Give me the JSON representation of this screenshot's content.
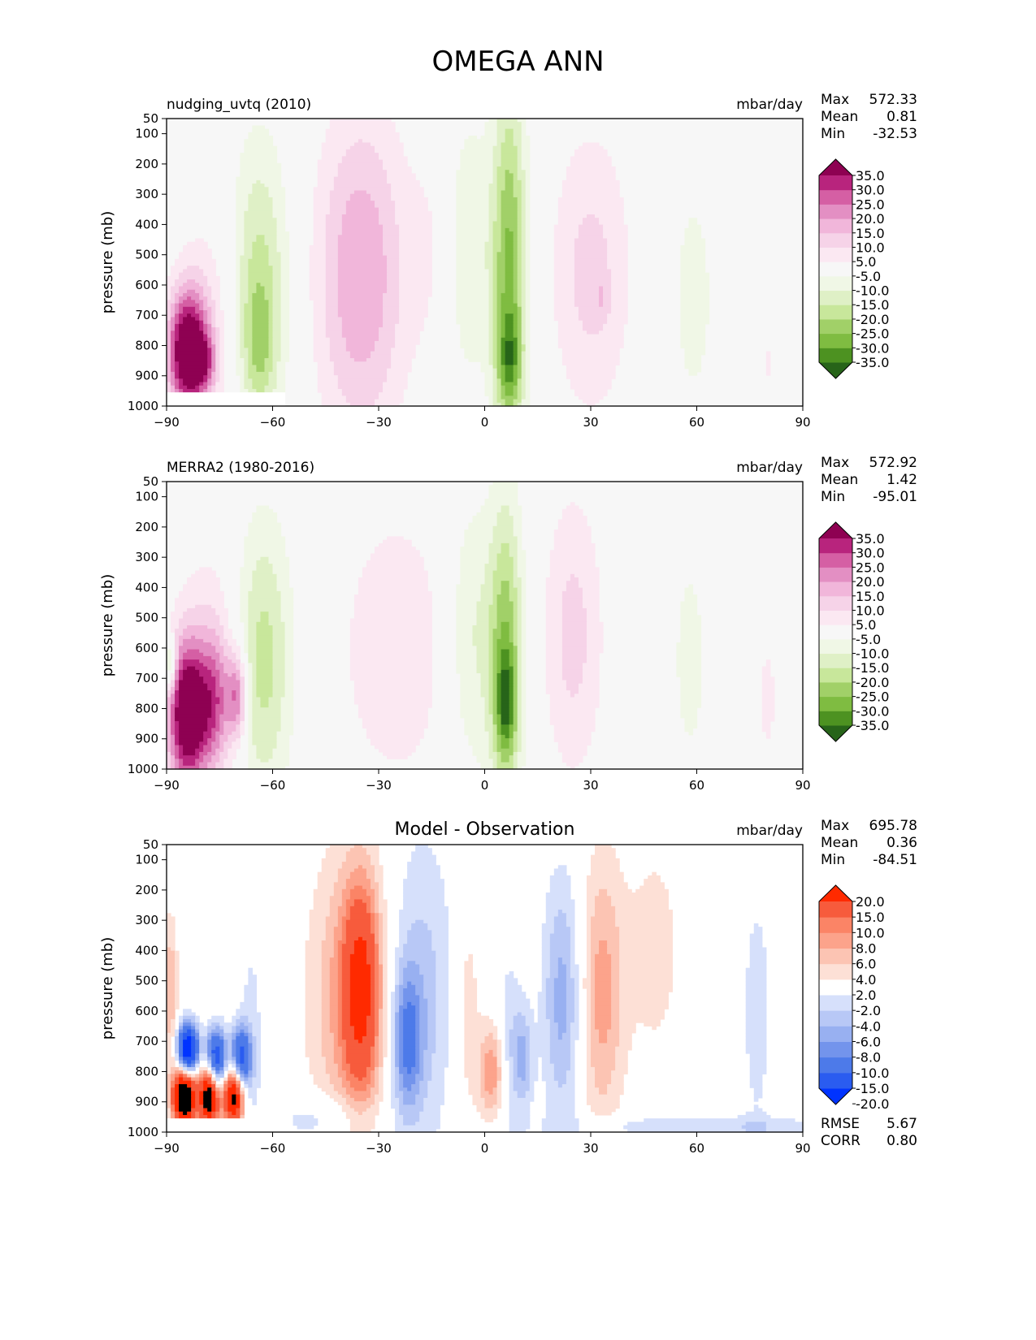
{
  "main_title": "OMEGA ANN",
  "colors": {
    "seq_levels": [
      "#276419",
      "#4d9221",
      "#7fbc41",
      "#a1d068",
      "#c8e79b",
      "#dff0c6",
      "#f0f7e6",
      "#f7f7f7",
      "#fbe8f2",
      "#f6d3e8",
      "#f1b6da",
      "#e38fc3",
      "#d55fa4",
      "#b8247d",
      "#8e0152"
    ],
    "diff_levels": [
      "#0033ff",
      "#2a5cf0",
      "#4d7ae9",
      "#7394ec",
      "#98b0f1",
      "#b8c8f6",
      "#d6e0fb",
      "#ffffff",
      "#fde0d6",
      "#fcc4b3",
      "#fca38b",
      "#fb8466",
      "#f75b3c",
      "#ff2a00"
    ],
    "background_seq": "#f7f7f7",
    "background_diff": "#ffffff"
  },
  "chart_data": [
    {
      "type": "heatmap",
      "id": "model",
      "title": "nudging_uvtq (2010)",
      "units": "mbar/day",
      "ylabel": "pressure (mb)",
      "xlim": [
        -90,
        90
      ],
      "ylim": [
        1000,
        50
      ],
      "xticks": [
        -90,
        -60,
        -30,
        0,
        30,
        60,
        90
      ],
      "xtick_labels": [
        "−90",
        "−60",
        "−30",
        "0",
        "30",
        "60",
        "90"
      ],
      "yticks": [
        50,
        100,
        200,
        300,
        400,
        500,
        600,
        700,
        800,
        900,
        1000
      ],
      "stats": [
        {
          "label": "Max",
          "value": "572.33"
        },
        {
          "label": "Mean",
          "value": "0.81"
        },
        {
          "label": "Min",
          "value": "-32.53"
        }
      ],
      "colorbar_labels": [
        "35.0",
        "30.0",
        "25.0",
        "20.0",
        "15.0",
        "10.0",
        "5.0",
        "-5.0",
        "-10.0",
        "-15.0",
        "-20.0",
        "-25.0",
        "-30.0",
        "-35.0"
      ],
      "colorbar": "seq",
      "mask": {
        "lat_max": -56,
        "p_min": 950
      },
      "features": [
        {
          "lat": -84,
          "p": 820,
          "sx": 4,
          "sy": 140,
          "amp": 45
        },
        {
          "lat": -77,
          "p": 750,
          "sx": 7,
          "sy": 320,
          "amp": 8
        },
        {
          "lat": -79,
          "p": 850,
          "sx": 2,
          "sy": 60,
          "amp": 14
        },
        {
          "lat": -64,
          "p": 620,
          "sx": 6,
          "sy": 350,
          "amp": -18
        },
        {
          "lat": -64,
          "p": 800,
          "sx": 3,
          "sy": 140,
          "amp": -10
        },
        {
          "lat": -35,
          "p": 570,
          "sx": 9,
          "sy": 380,
          "amp": 20
        },
        {
          "lat": -14,
          "p": 480,
          "sx": 5,
          "sy": 280,
          "amp": 5
        },
        {
          "lat": -5,
          "p": 480,
          "sx": 5,
          "sy": 330,
          "amp": -10
        },
        {
          "lat": 7,
          "p": 540,
          "sx": 3.5,
          "sy": 430,
          "amp": -26
        },
        {
          "lat": 7,
          "p": 850,
          "sx": 2.5,
          "sy": 110,
          "amp": -16
        },
        {
          "lat": 30,
          "p": 560,
          "sx": 8,
          "sy": 330,
          "amp": 12
        },
        {
          "lat": 33,
          "p": 640,
          "sx": 1.5,
          "sy": 50,
          "amp": 5
        },
        {
          "lat": 59,
          "p": 640,
          "sx": 5,
          "sy": 320,
          "amp": -7
        },
        {
          "lat": 80,
          "p": 860,
          "sx": 1.5,
          "sy": 70,
          "amp": 6
        }
      ]
    },
    {
      "type": "heatmap",
      "id": "obs",
      "title": "MERRA2 (1980-2016)",
      "units": "mbar/day",
      "ylabel": "pressure (mb)",
      "xlim": [
        -90,
        90
      ],
      "ylim": [
        1000,
        50
      ],
      "xticks": [
        -90,
        -60,
        -30,
        0,
        30,
        60,
        90
      ],
      "xtick_labels": [
        "−90",
        "−60",
        "−30",
        "0",
        "30",
        "60",
        "90"
      ],
      "yticks": [
        50,
        100,
        200,
        300,
        400,
        500,
        600,
        700,
        800,
        900,
        1000
      ],
      "stats": [
        {
          "label": "Max",
          "value": "572.92"
        },
        {
          "label": "Mean",
          "value": "1.42"
        },
        {
          "label": "Min",
          "value": "-95.01"
        }
      ],
      "colorbar_labels": [
        "35.0",
        "30.0",
        "25.0",
        "20.0",
        "15.0",
        "10.0",
        "5.0",
        "-5.0",
        "-10.0",
        "-15.0",
        "-20.0",
        "-25.0",
        "-30.0",
        "-35.0"
      ],
      "colorbar": "seq",
      "features": [
        {
          "lat": -84,
          "p": 820,
          "sx": 4,
          "sy": 170,
          "amp": 45
        },
        {
          "lat": -76,
          "p": 780,
          "sx": 3,
          "sy": 160,
          "amp": 20
        },
        {
          "lat": -70,
          "p": 760,
          "sx": 2,
          "sy": 110,
          "amp": 25
        },
        {
          "lat": -77,
          "p": 620,
          "sx": 7,
          "sy": 300,
          "amp": 8
        },
        {
          "lat": -89,
          "p": 650,
          "sx": 1.2,
          "sy": 60,
          "amp": -22
        },
        {
          "lat": -63,
          "p": 640,
          "sx": 6,
          "sy": 330,
          "amp": -18
        },
        {
          "lat": -25,
          "p": 600,
          "sx": 12,
          "sy": 340,
          "amp": 9
        },
        {
          "lat": -4,
          "p": 560,
          "sx": 5,
          "sy": 330,
          "amp": -11
        },
        {
          "lat": 6,
          "p": 620,
          "sx": 3.5,
          "sy": 360,
          "amp": -24
        },
        {
          "lat": 6,
          "p": 790,
          "sx": 2,
          "sy": 120,
          "amp": -18
        },
        {
          "lat": 25,
          "p": 560,
          "sx": 6,
          "sy": 330,
          "amp": 12
        },
        {
          "lat": 58,
          "p": 640,
          "sx": 4,
          "sy": 300,
          "amp": -7
        },
        {
          "lat": 80,
          "p": 770,
          "sx": 2,
          "sy": 160,
          "amp": 7
        }
      ]
    },
    {
      "type": "heatmap",
      "id": "diff",
      "title": "Model - Observation",
      "units": "mbar/day",
      "ylabel": "pressure (mb)",
      "xlim": [
        -90,
        90
      ],
      "ylim": [
        1000,
        50
      ],
      "xticks": [
        -90,
        -60,
        -30,
        0,
        30,
        60,
        90
      ],
      "xtick_labels": [
        "−90",
        "−60",
        "−30",
        "0",
        "30",
        "60",
        "90"
      ],
      "yticks": [
        50,
        100,
        200,
        300,
        400,
        500,
        600,
        700,
        800,
        900,
        1000
      ],
      "stats": [
        {
          "label": "Max",
          "value": "695.78"
        },
        {
          "label": "Mean",
          "value": "0.36"
        },
        {
          "label": "Min",
          "value": "-84.51"
        }
      ],
      "bottom_stats": [
        {
          "label": "RMSE",
          "value": "5.67"
        },
        {
          "label": "CORR",
          "value": "0.80"
        }
      ],
      "colorbar_labels": [
        "20.0",
        "15.0",
        "10.0",
        "8.0",
        "6.0",
        "4.0",
        "2.0",
        "-2.0",
        "-4.0",
        "-6.0",
        "-8.0",
        "-10.0",
        "-15.0",
        "-20.0"
      ],
      "colorbar": "diff",
      "mask": {
        "lat_max": -56,
        "p_min": 950
      },
      "features": [
        {
          "lat": -36,
          "p": 560,
          "sx": 9,
          "sy": 360,
          "amp": 8
        },
        {
          "lat": -35,
          "p": 520,
          "sx": 3.5,
          "sy": 230,
          "amp": 12
        },
        {
          "lat": -20,
          "p": 540,
          "sx": 8,
          "sy": 370,
          "amp": -6
        },
        {
          "lat": -22,
          "p": 700,
          "sx": 3,
          "sy": 160,
          "amp": -9
        },
        {
          "lat": -5,
          "p": 600,
          "sx": 3,
          "sy": 300,
          "amp": 3.5
        },
        {
          "lat": 2,
          "p": 800,
          "sx": 2.5,
          "sy": 110,
          "amp": 8
        },
        {
          "lat": 7,
          "p": 700,
          "sx": 2.5,
          "sy": 210,
          "amp": -3.5
        },
        {
          "lat": 11,
          "p": 760,
          "sx": 2,
          "sy": 120,
          "amp": -6
        },
        {
          "lat": 22,
          "p": 560,
          "sx": 4,
          "sy": 290,
          "amp": -7
        },
        {
          "lat": 33,
          "p": 540,
          "sx": 4.5,
          "sy": 320,
          "amp": 7
        },
        {
          "lat": 48,
          "p": 400,
          "sx": 6,
          "sy": 280,
          "amp": 3
        },
        {
          "lat": 77,
          "p": 600,
          "sx": 2.5,
          "sy": 250,
          "amp": -4
        },
        {
          "lat": -85,
          "p": 880,
          "sx": 2.2,
          "sy": 70,
          "amp": 30
        },
        {
          "lat": -78,
          "p": 880,
          "sx": 2,
          "sy": 70,
          "amp": 26
        },
        {
          "lat": -71,
          "p": 880,
          "sx": 2,
          "sy": 70,
          "amp": 24
        },
        {
          "lat": -84,
          "p": 730,
          "sx": 2,
          "sy": 60,
          "amp": -28
        },
        {
          "lat": -76,
          "p": 760,
          "sx": 2,
          "sy": 70,
          "amp": -20
        },
        {
          "lat": -69,
          "p": 760,
          "sx": 2,
          "sy": 70,
          "amp": -18
        },
        {
          "lat": -89,
          "p": 540,
          "sx": 1.5,
          "sy": 180,
          "amp": 6
        },
        {
          "lat": -66,
          "p": 650,
          "sx": 3,
          "sy": 300,
          "amp": -2.5
        },
        {
          "lat": -45,
          "p": 960,
          "sx": 10,
          "sy": 60,
          "amp": -4
        },
        {
          "lat": 62,
          "p": 985,
          "sx": 30,
          "sy": 30,
          "amp": -4
        }
      ]
    }
  ]
}
